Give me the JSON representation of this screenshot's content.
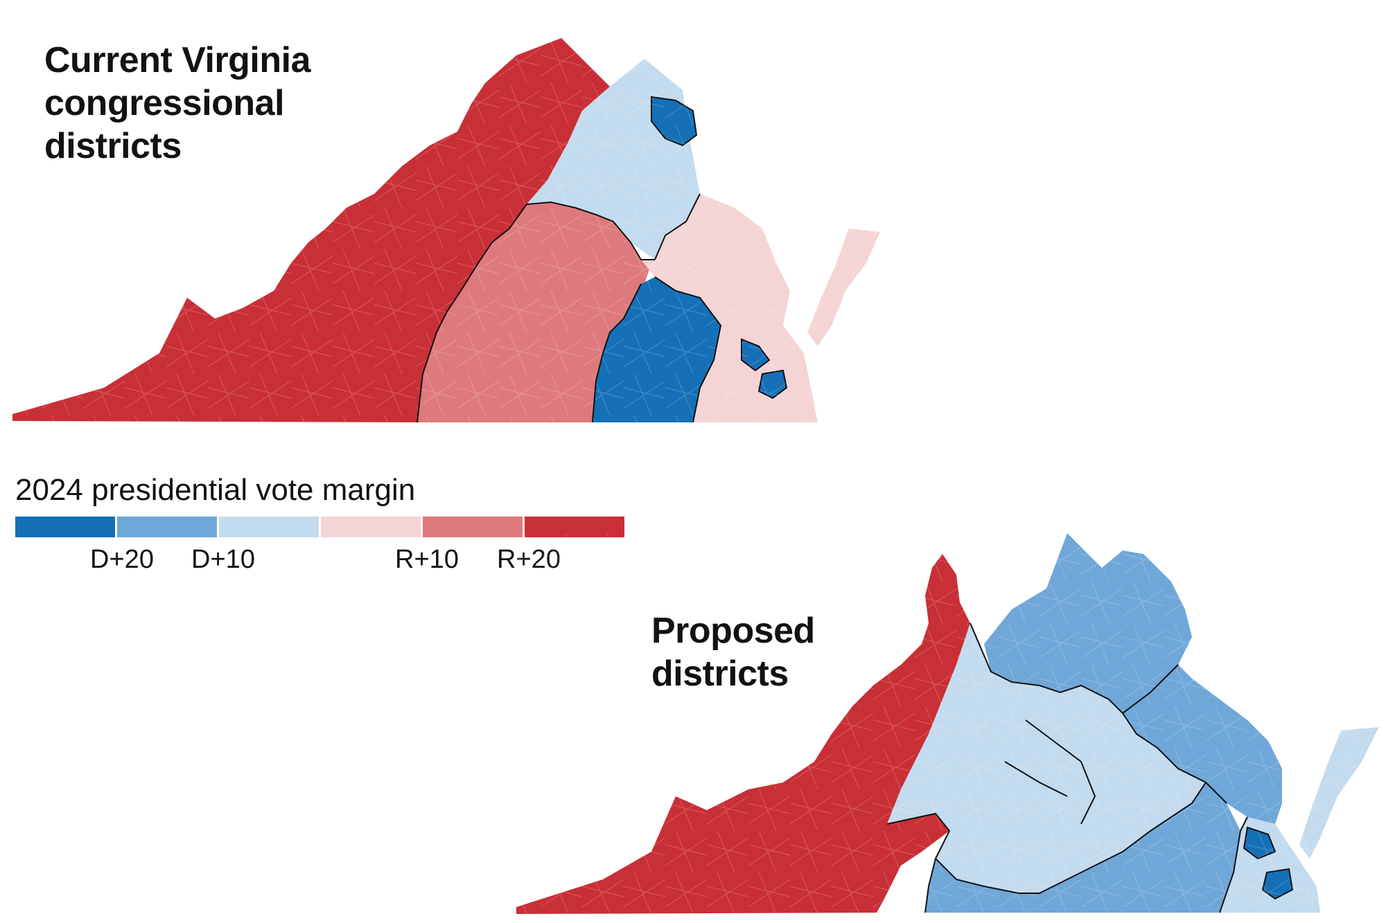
{
  "maps": {
    "current": {
      "title": "Current Virginia\ncongressional\ndistricts"
    },
    "proposed": {
      "title": "Proposed\ndistricts"
    }
  },
  "legend": {
    "title": "2024 presidential vote margin",
    "colors": [
      "#1570b7",
      "#6fa7d8",
      "#c3dbee",
      "#f5d4d6",
      "#de7a7d",
      "#c92f36"
    ],
    "ticks": [
      "D+20",
      "D+10",
      "R+10",
      "R+20"
    ]
  },
  "colors": {
    "d_strong": "#1570b7",
    "d_medium": "#6fa7d8",
    "d_lean": "#c3dbee",
    "r_lean": "#f5d4d6",
    "r_medium": "#de7a7d",
    "r_strong": "#c92f36",
    "border": "#111111"
  }
}
